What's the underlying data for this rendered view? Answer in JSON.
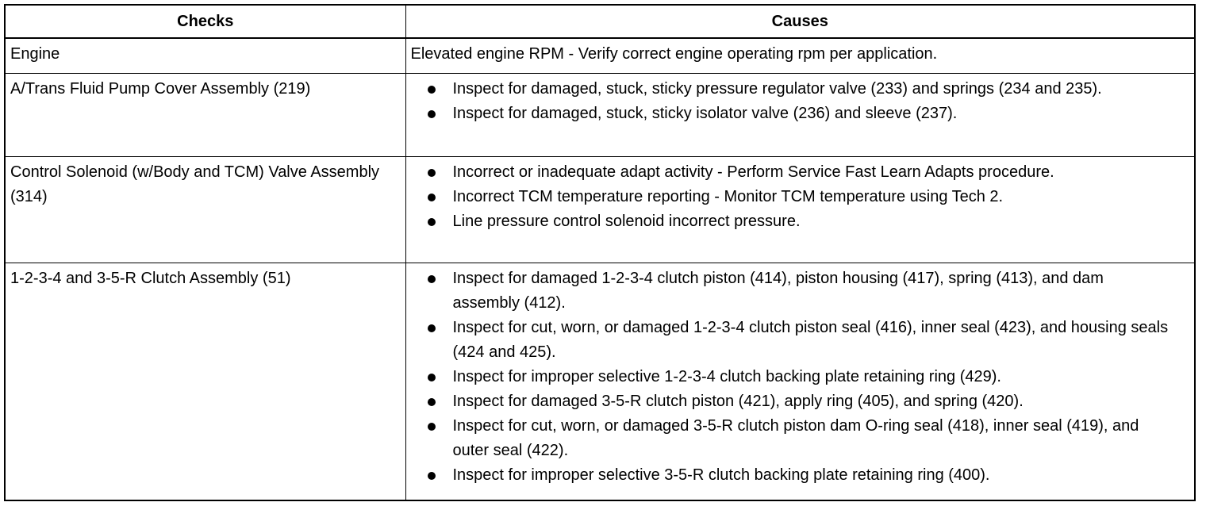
{
  "table": {
    "headers": [
      "Checks",
      "Causes"
    ],
    "rows": [
      {
        "check": "Engine",
        "causes": [
          "Elevated engine RPM - Verify correct engine operating rpm per application."
        ],
        "bulleted": false
      },
      {
        "check": "A/Trans Fluid Pump Cover Assembly (219)",
        "causes": [
          "Inspect for damaged, stuck, sticky pressure regulator valve (233) and springs (234 and 235).",
          "Inspect for damaged, stuck, sticky isolator valve (236) and sleeve (237)."
        ],
        "bulleted": true
      },
      {
        "check": "Control Solenoid (w/Body and TCM) Valve Assembly (314)",
        "causes": [
          "Incorrect or inadequate adapt activity - Perform Service Fast Learn Adapts procedure.",
          "Incorrect TCM temperature reporting - Monitor TCM temperature using Tech 2.",
          "Line pressure control solenoid incorrect pressure."
        ],
        "bulleted": true
      },
      {
        "check": "1-2-3-4 and 3-5-R Clutch Assembly (51)",
        "causes": [
          "Inspect for damaged 1-2-3-4 clutch piston (414), piston housing (417), spring (413), and dam assembly (412).",
          "Inspect for cut, worn, or damaged 1-2-3-4 clutch piston seal (416), inner seal (423), and housing seals (424 and 425).",
          "Inspect for improper selective 1-2-3-4 clutch backing plate retaining ring (429).",
          "Inspect for damaged 3-5-R clutch piston (421), apply ring (405), and spring (420).",
          "Inspect for cut, worn, or damaged 3-5-R clutch piston dam O-ring seal (418), inner seal (419), and outer seal (422).",
          "Inspect for improper selective 3-5-R clutch backing plate retaining ring (400)."
        ],
        "bulleted": true
      }
    ]
  }
}
